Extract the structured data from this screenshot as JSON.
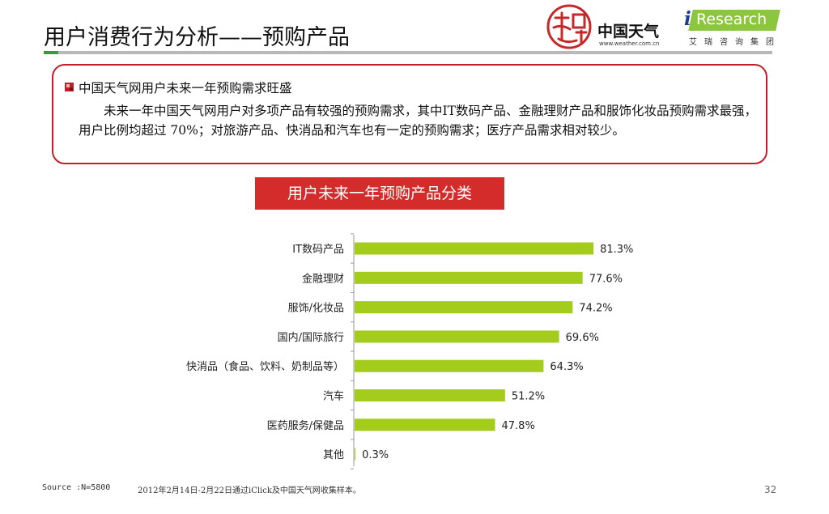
{
  "header": {
    "title": "用户消费行为分析——预购产品"
  },
  "logos": {
    "weather_name": "中国天气",
    "weather_url": "www.weather.com.cn",
    "iresearch_i": "i",
    "iresearch_name": "Research",
    "iresearch_sub": "艾瑞咨询集团"
  },
  "summary": {
    "heading": "中国天气网用户未来一年预购需求旺盛",
    "body": "未来一年中国天气网用户对多项产品有较强的预购需求，其中IT数码产品、金融理财产品和服饰化妆品预购需求最强，用户比例均超过 70%；对旅游产品、快消品和汽车也有一定的预购需求；医疗产品需求相对较少。"
  },
  "chart_data": {
    "type": "bar",
    "orientation": "horizontal",
    "title": "用户未来一年预购产品分类",
    "categories": [
      "IT数码产品",
      "金融理财",
      "服饰/化妆品",
      "国内/国际旅行",
      "快消品（食品、饮料、奶制品等）",
      "汽车",
      "医药服务/保健品",
      "其他"
    ],
    "values": [
      81.3,
      77.6,
      74.2,
      69.6,
      64.3,
      51.2,
      47.8,
      0.3
    ],
    "labels": [
      "81.3%",
      "77.6%",
      "74.2%",
      "69.6%",
      "64.3%",
      "51.2%",
      "47.8%",
      "0.3%"
    ],
    "xlim": [
      0,
      100
    ],
    "grid": false,
    "bar_color": "#a3cc1c"
  },
  "footer": {
    "source": "Source :N=5800",
    "note": "2012年2月14日-2月22日通过iClick及中国天气网收集样本。",
    "page": "32"
  },
  "colors": {
    "accent_red": "#c0202a",
    "title_box": "#d42b2b",
    "rule_gray": "#b8b8b8",
    "rule_green": "#3a9a3a",
    "iresearch_green": "#8cc63e"
  }
}
